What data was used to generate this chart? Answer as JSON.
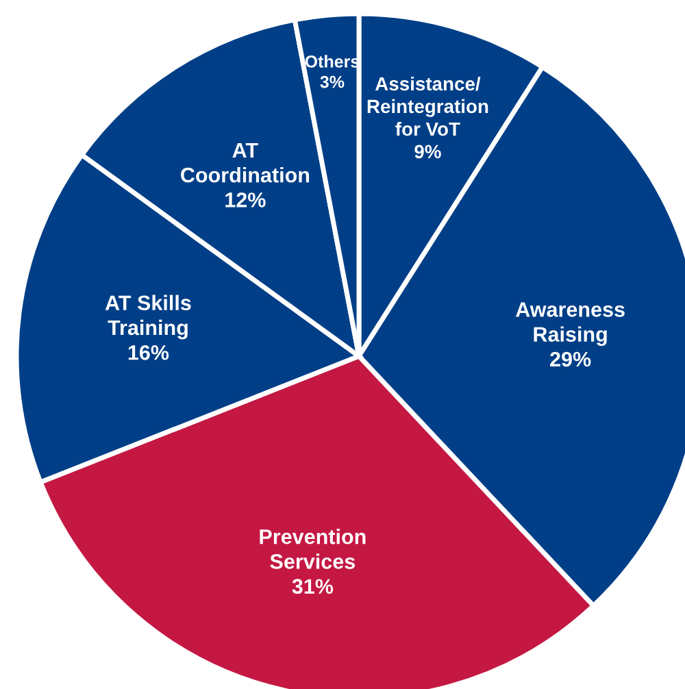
{
  "chart_data": {
    "type": "pie",
    "categories": [
      "Assistance/\nReintegration\nfor VoT",
      "Awareness\nRaising",
      "Prevention\nServices",
      "AT Skills\nTraining",
      "AT\nCoordination",
      "Others"
    ],
    "values": [
      9,
      29,
      31,
      16,
      12,
      3
    ],
    "value_labels": [
      "9%",
      "29%",
      "31%",
      "16%",
      "12%",
      "3%"
    ],
    "colors": [
      "#003f87",
      "#003f87",
      "#c41843",
      "#003f87",
      "#003f87",
      "#003f87"
    ]
  }
}
